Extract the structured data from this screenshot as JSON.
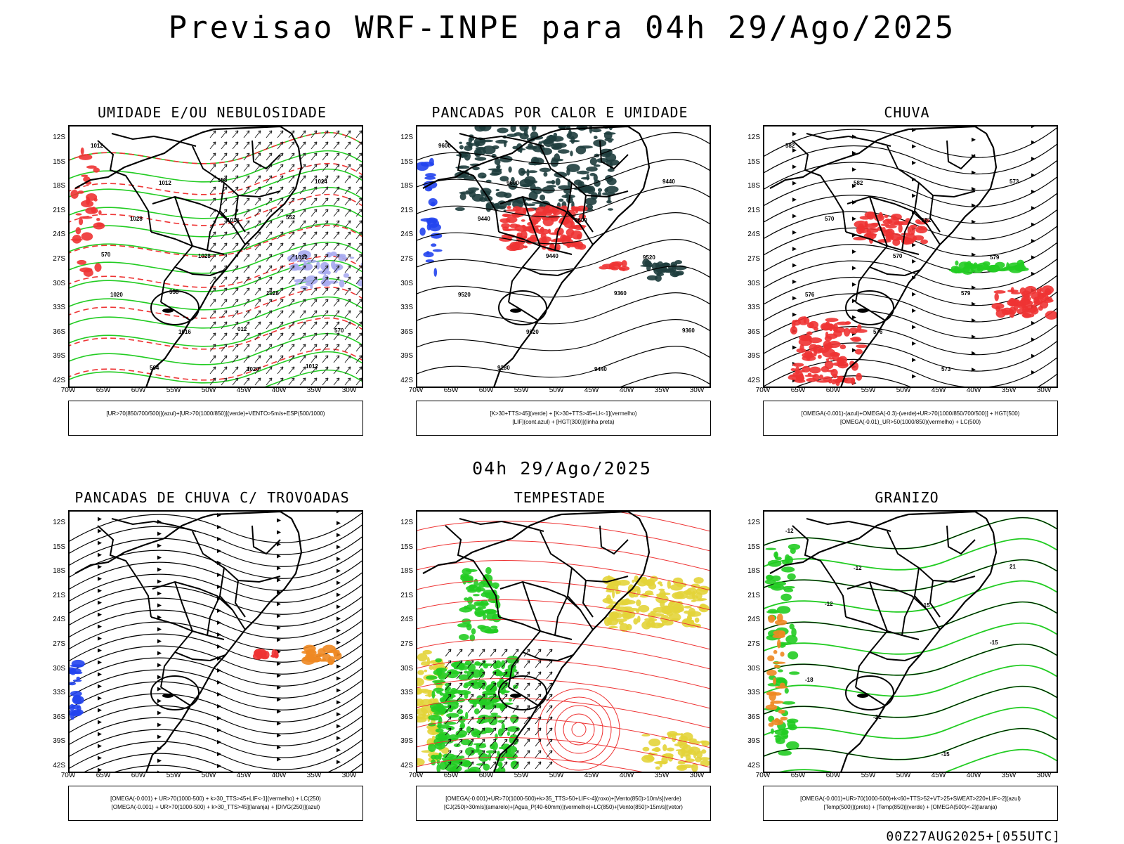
{
  "header": {
    "title": "Previsao WRF-INPE  para 04h 29/Ago/2025",
    "subtitle": "04h 29/Ago/2025",
    "footer": "00Z27AUG2025+[055UTC]"
  },
  "axes": {
    "lat_labels": [
      "12S",
      "15S",
      "18S",
      "21S",
      "24S",
      "27S",
      "30S",
      "33S",
      "36S",
      "39S",
      "42S"
    ],
    "lon_labels": [
      "70W",
      "65W",
      "60W",
      "55W",
      "50W",
      "45W",
      "40W",
      "35W",
      "30W"
    ]
  },
  "panels": [
    {
      "title": "UMIDADE E/OU NEBULOSIDADE",
      "legend": [
        "[UR>70(850/700/500)](azul)+[UR>70(1000/850)](verde)+VENTO>5m/s+ESP(500/1000)"
      ],
      "contour_labels": [
        "1012",
        "1012",
        "1016",
        "1012",
        "1020",
        "1016",
        "1020",
        "1024",
        "1028",
        "1028",
        "1028",
        "570",
        "564",
        "558",
        "552",
        "570",
        "558",
        "012",
        "1012"
      ]
    },
    {
      "title": "PANCADAS POR CALOR E UMIDADE",
      "legend": [
        "[K>30+TTS>45](verde) + [K>30+TTS>45+LI<-1](vermelho)",
        "[LIF](cont.azul) + [HGT(300)](linha preta)"
      ],
      "contour_labels": [
        "9600",
        "9600",
        "9600",
        "9520",
        "9520",
        "9520",
        "9440",
        "9440",
        "9440",
        "9440",
        "9360",
        "9360",
        "9280"
      ]
    },
    {
      "title": "CHUVA",
      "legend": [
        "[OMEGA(-0.001)-(azul)+OMEGA(-0.3)-(verde)+UR>70(1000/850/700/500)] + HGT(500)",
        "[OMEGA(-0.01)_UR>50(1000/850)(vermelho) + LC(500)"
      ],
      "contour_labels": [
        "582",
        "582",
        "582",
        "579",
        "576",
        "576",
        "573",
        "573",
        "570",
        "570",
        "579"
      ]
    },
    {
      "title": "PANCADAS DE CHUVA C/ TROVOADAS",
      "legend": [
        "[OMEGA(-0.001) + UR>70(1000-500) + k>30_TTS>45+LIF<-1](vermelho) + LC(250)",
        "[OMEGA(-0.001) + UR>70(1000-500) + k>30_TTS>45](laranja) + [DIVG(250)](azul)"
      ],
      "contour_labels": []
    },
    {
      "title": "TEMPESTADE",
      "legend": [
        "[OMEGA(-0.001)+UR>70(1000-500)+k>35_TTS>50+LIF<-4](roxo)+[Vento(850)>10m/s](verde)",
        "[CJ(250)>30m/s](amarelo)+[Agua_P(40-60mm)](vermelho)+LC(850)+[Vento(850)>15m/s](vetor)"
      ],
      "contour_labels": []
    },
    {
      "title": "GRANIZO",
      "legend": [
        "[OMEGA(-0.001)+UR>70(1000-500)+k<60+TTS>52+VT>25+SWEAT>220+LIF<-2](azul)",
        "[Temp(500)](preto) + [Temp(850)](verde) + [OMEGA(500)<-2](laranja)"
      ],
      "contour_labels": [
        "-12",
        "-12",
        "-15",
        "-15",
        "-18",
        "-21",
        "-15",
        "21",
        "-12"
      ]
    }
  ],
  "colors": {
    "green": "#22cc22",
    "red": "#ee3333",
    "blue": "#2244ee",
    "dark": "#1e3d3d",
    "yellow": "#e3d43a",
    "orange": "#ee8822",
    "lavender": "#a7aaf0"
  }
}
